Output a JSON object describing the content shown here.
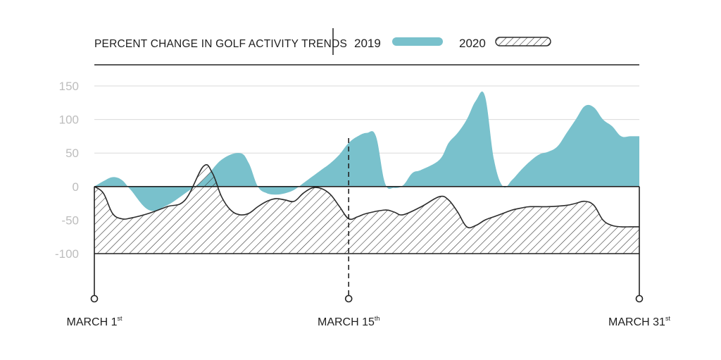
{
  "chart_data": {
    "type": "area",
    "title": "PERCENT CHANGE IN GOLF ACTIVITY TRENDS",
    "xlabel": "",
    "ylabel": "",
    "ylim": [
      -100,
      150
    ],
    "yticks": [
      "150",
      "100",
      "50",
      "0",
      "-100"
    ],
    "yticks_values": [
      150,
      100,
      50,
      0,
      -100
    ],
    "ytick_minus50": "-50",
    "x_range": [
      1,
      31
    ],
    "x_markers": [
      {
        "day": 1,
        "label": "MARCH 1",
        "suffix": "st"
      },
      {
        "day": 15,
        "label": "MARCH 15",
        "suffix": "th"
      },
      {
        "day": 31,
        "label": "MARCH 31",
        "suffix": "st"
      }
    ],
    "colors": {
      "2019": "#79c1cc",
      "2020_hatch": "#2b2b2b",
      "axis": "#222222",
      "grid": "#d9d9d9",
      "tick": "#bdbdbd"
    },
    "series": [
      {
        "name": "2019",
        "x": [
          1,
          1.5,
          2.0,
          2.5,
          3.0,
          4.0,
          5.0,
          6.0,
          7.0,
          8.0,
          9.0,
          9.5,
          10.0,
          10.5,
          11.0,
          11.5,
          12.0,
          12.5,
          13.0,
          13.5,
          14.0,
          14.5,
          15.0,
          15.5,
          16.0,
          16.5,
          17.0,
          17.5,
          18.0,
          18.5,
          19.0,
          20.0,
          20.5,
          21.0,
          21.5,
          22.0,
          22.5,
          23.0,
          23.5,
          24.0,
          24.5,
          25.0,
          25.5,
          26.0,
          26.5,
          27.0,
          27.5,
          28.0,
          28.5,
          29.0,
          29.5,
          30.0,
          30.5,
          31.0
        ],
        "values": [
          0,
          8,
          14,
          10,
          -5,
          -35,
          -28,
          -10,
          10,
          40,
          50,
          35,
          0,
          -10,
          -12,
          -10,
          -5,
          5,
          15,
          25,
          35,
          48,
          65,
          75,
          80,
          75,
          5,
          -2,
          2,
          20,
          25,
          40,
          65,
          80,
          100,
          128,
          135,
          40,
          0,
          10,
          25,
          38,
          48,
          52,
          60,
          80,
          100,
          120,
          118,
          100,
          90,
          75,
          75,
          75
        ]
      },
      {
        "name": "2020",
        "x": [
          1,
          1.5,
          2.0,
          2.5,
          3.0,
          4.0,
          5.0,
          6.0,
          7.0,
          7.5,
          8.0,
          8.5,
          9.0,
          9.5,
          10.0,
          10.5,
          11.0,
          11.5,
          12.0,
          12.5,
          13.0,
          13.5,
          14.0,
          14.5,
          15.0,
          15.5,
          16.0,
          17.0,
          17.5,
          18.0,
          19.0,
          20.0,
          20.5,
          21.0,
          21.5,
          22.0,
          22.5,
          23.0,
          23.5,
          24.0,
          24.5,
          25.0,
          26.0,
          27.0,
          27.5,
          28.0,
          28.5,
          29.0,
          29.5,
          30.0,
          30.5,
          31.0
        ],
        "values": [
          0,
          -10,
          -40,
          -48,
          -47,
          -40,
          -30,
          -20,
          30,
          20,
          -15,
          -35,
          -42,
          -40,
          -30,
          -22,
          -18,
          -20,
          -22,
          -10,
          -2,
          -3,
          -12,
          -30,
          -48,
          -45,
          -40,
          -35,
          -38,
          -42,
          -30,
          -15,
          -20,
          -38,
          -60,
          -58,
          -50,
          -45,
          -40,
          -35,
          -32,
          -30,
          -30,
          -28,
          -25,
          -22,
          -28,
          -50,
          -58,
          -60,
          -60,
          -60
        ]
      }
    ]
  }
}
